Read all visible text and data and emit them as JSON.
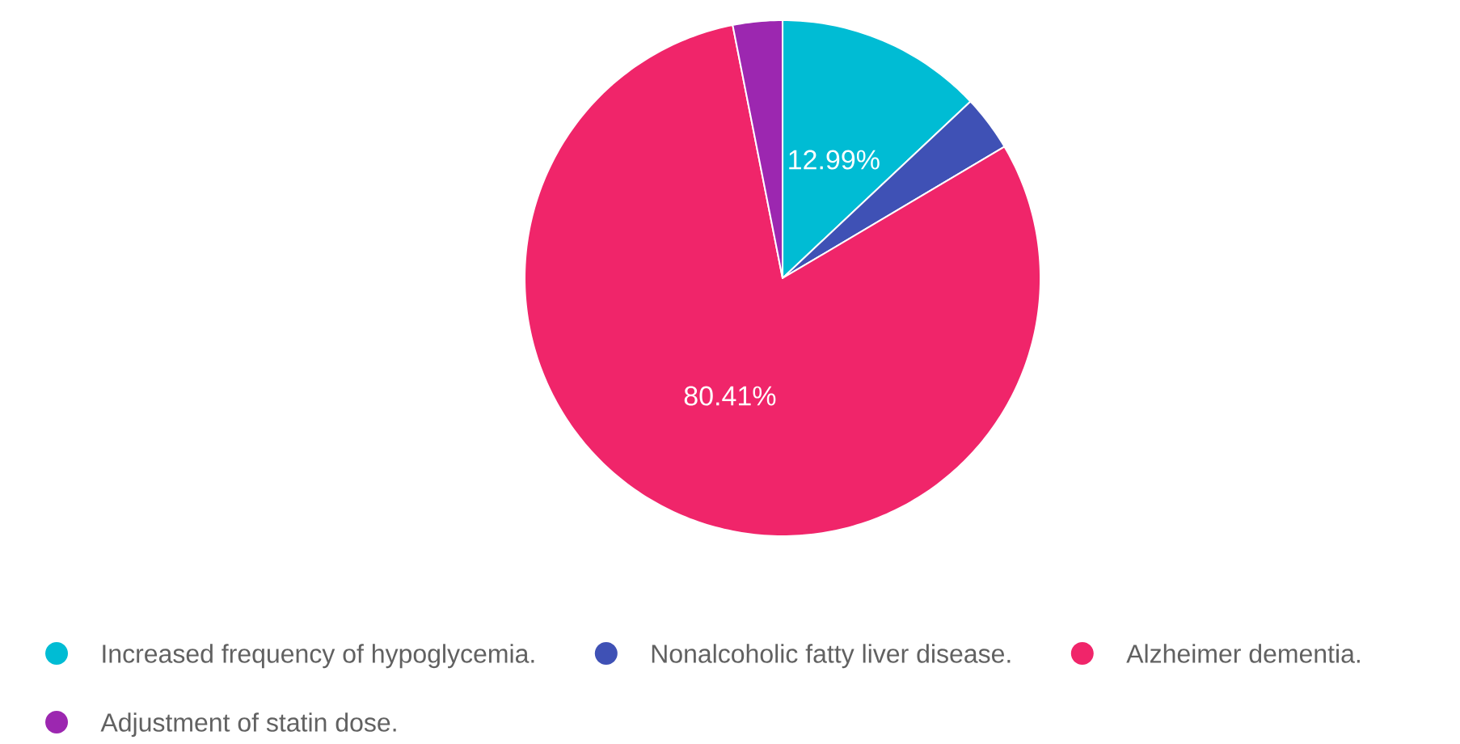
{
  "chart_data": {
    "type": "pie",
    "categories": [
      "Increased frequency of hypoglycemia.",
      "Nonalcoholic fatty liver disease.",
      "Alzheimer dementia.",
      "Adjustment of statin dose."
    ],
    "values": [
      12.99,
      3.5,
      80.41,
      3.1
    ],
    "colors": [
      "#00bcd4",
      "#3f51b5",
      "#f0256a",
      "#9c27b0"
    ],
    "value_labels": [
      "12.99%",
      null,
      "80.41%",
      null
    ],
    "legend": "bottom"
  }
}
